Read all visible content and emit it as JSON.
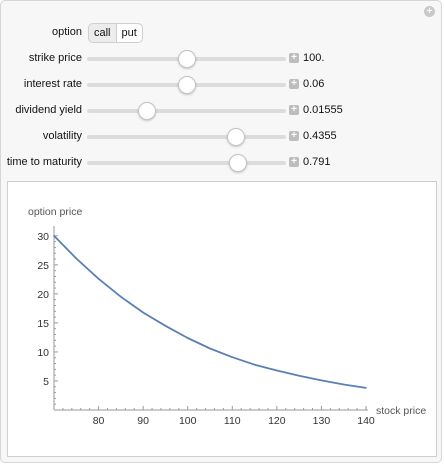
{
  "controls": {
    "option": {
      "label": "option",
      "choices": [
        "call",
        "put"
      ],
      "selected": "put"
    },
    "sliders": [
      {
        "id": "strike",
        "label": "strike price",
        "value": "100.",
        "fraction": 0.5
      },
      {
        "id": "rate",
        "label": "interest rate",
        "value": "0.06",
        "fraction": 0.5
      },
      {
        "id": "dividend",
        "label": "dividend yield",
        "value": "0.01555",
        "fraction": 0.3
      },
      {
        "id": "vol",
        "label": "volatility",
        "value": "0.4355",
        "fraction": 0.75
      },
      {
        "id": "ttm",
        "label": "time to maturity",
        "value": "0.791",
        "fraction": 0.76
      }
    ]
  },
  "chart_data": {
    "type": "line",
    "xlabel": "stock price",
    "ylabel": "option price",
    "xlim": [
      70,
      140
    ],
    "ylim": [
      0,
      31
    ],
    "xticks": [
      80,
      90,
      100,
      110,
      120,
      130,
      140
    ],
    "yticks": [
      5,
      10,
      15,
      20,
      25,
      30
    ],
    "line_color": "#5b7fb5",
    "x": [
      70,
      75,
      80,
      85,
      90,
      95,
      100,
      105,
      110,
      115,
      120,
      125,
      130,
      135,
      140
    ],
    "y": [
      30.0,
      26.1,
      22.6,
      19.5,
      16.8,
      14.5,
      12.4,
      10.6,
      9.1,
      7.8,
      6.8,
      5.9,
      5.1,
      4.4,
      3.8
    ]
  }
}
